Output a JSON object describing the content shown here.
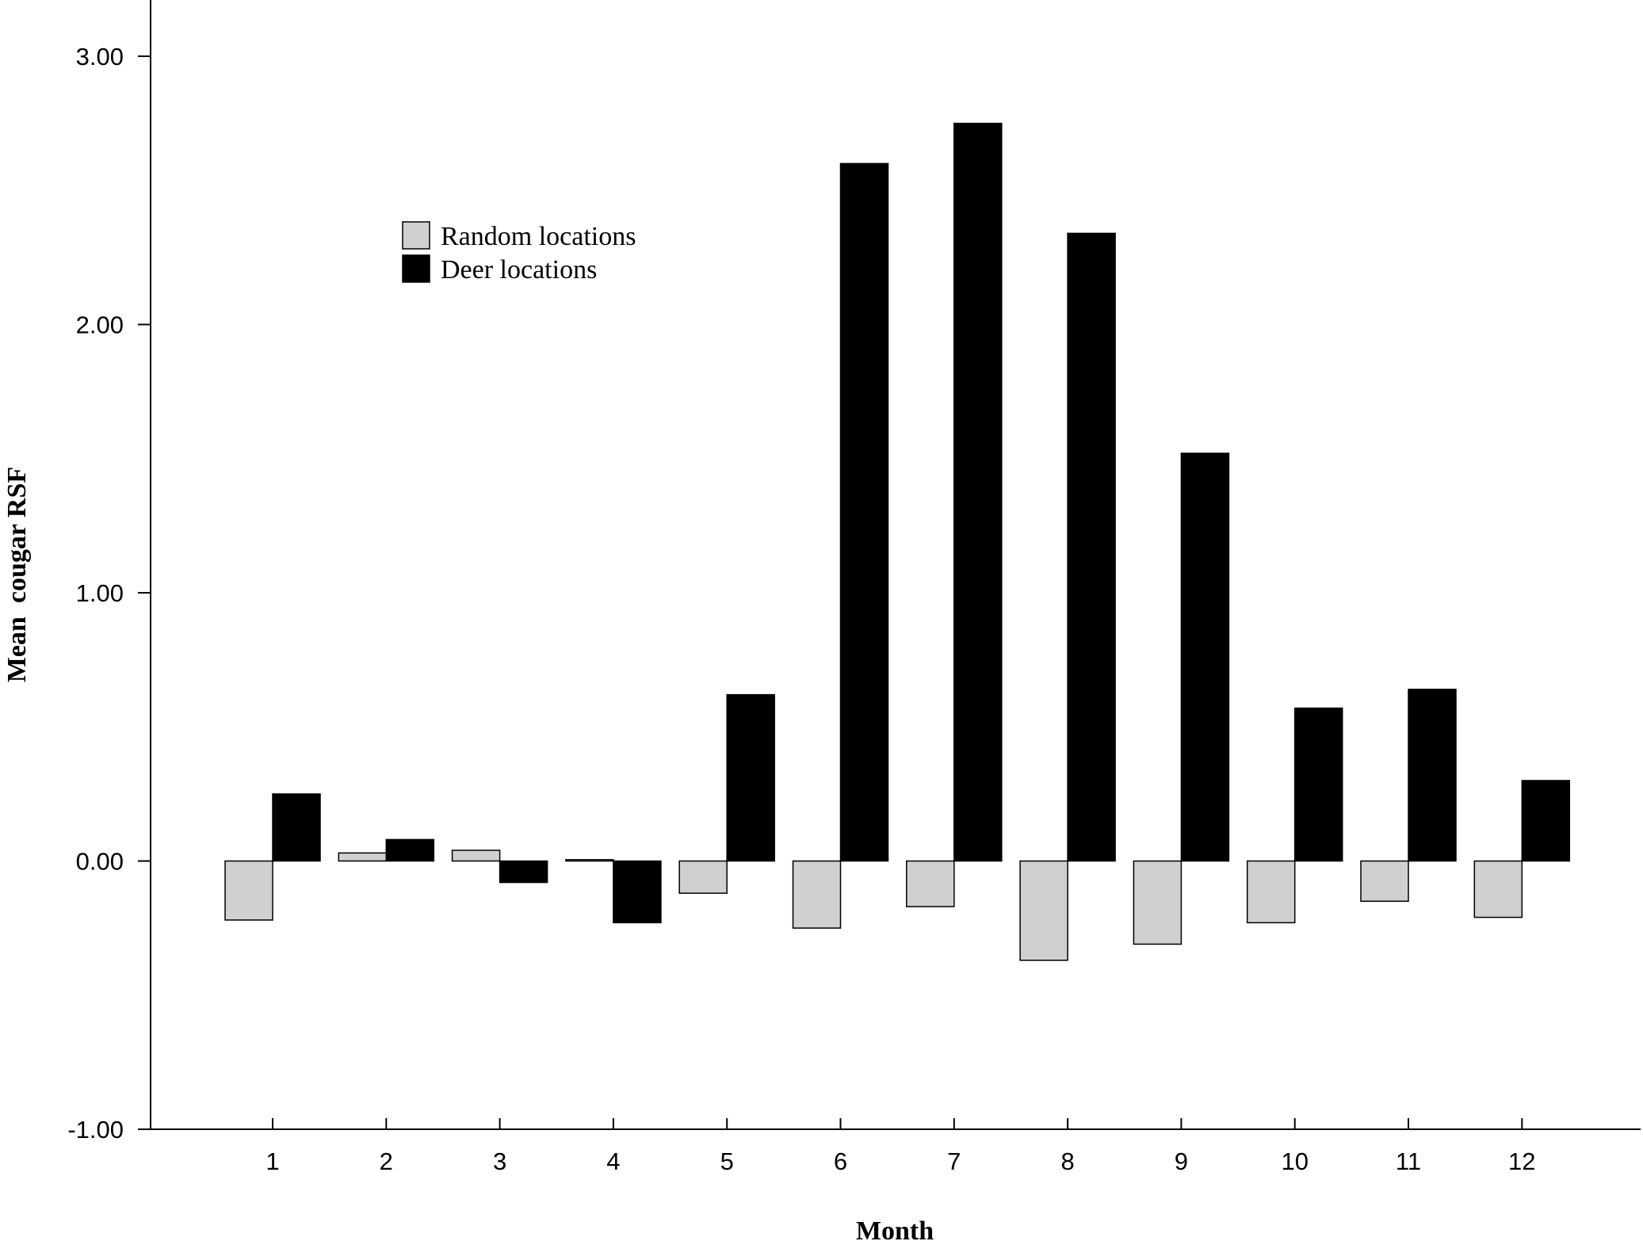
{
  "chart_data": {
    "type": "bar",
    "title": "",
    "xlabel": "Month",
    "ylabel": "Mean  cougar RSF",
    "categories": [
      "1",
      "2",
      "3",
      "4",
      "5",
      "6",
      "7",
      "8",
      "9",
      "10",
      "11",
      "12"
    ],
    "series": [
      {
        "name": "Random locations",
        "color": "#d0d0d0",
        "values": [
          -0.22,
          0.03,
          0.04,
          0.005,
          -0.12,
          -0.25,
          -0.17,
          -0.37,
          -0.31,
          -0.23,
          -0.15,
          -0.21
        ]
      },
      {
        "name": "Deer locations",
        "color": "#000000",
        "values": [
          0.25,
          0.08,
          -0.08,
          -0.23,
          0.62,
          2.6,
          2.75,
          2.34,
          1.52,
          0.57,
          0.64,
          0.3
        ]
      }
    ],
    "ylim": [
      -1.0,
      3.2
    ],
    "yticks": [
      -1.0,
      0.0,
      1.0,
      2.0,
      3.0
    ],
    "ytick_labels": [
      "-1.00",
      "0.00",
      "1.00",
      "2.00",
      "3.00"
    ],
    "grid": false,
    "legend_position": "top-left"
  }
}
